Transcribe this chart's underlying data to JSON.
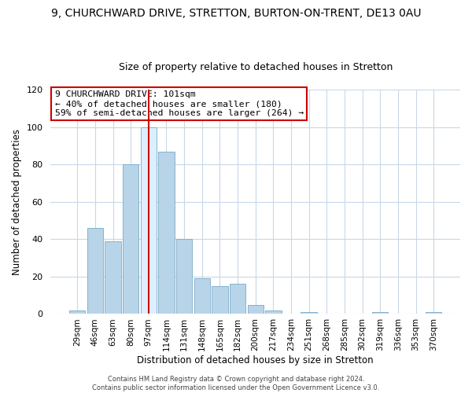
{
  "title": "9, CHURCHWARD DRIVE, STRETTON, BURTON-ON-TRENT, DE13 0AU",
  "subtitle": "Size of property relative to detached houses in Stretton",
  "xlabel": "Distribution of detached houses by size in Stretton",
  "ylabel": "Number of detached properties",
  "bar_labels": [
    "29sqm",
    "46sqm",
    "63sqm",
    "80sqm",
    "97sqm",
    "114sqm",
    "131sqm",
    "148sqm",
    "165sqm",
    "182sqm",
    "200sqm",
    "217sqm",
    "234sqm",
    "251sqm",
    "268sqm",
    "285sqm",
    "302sqm",
    "319sqm",
    "336sqm",
    "353sqm",
    "370sqm"
  ],
  "bar_values": [
    2,
    46,
    39,
    80,
    100,
    87,
    40,
    19,
    15,
    16,
    5,
    2,
    0,
    1,
    0,
    0,
    0,
    1,
    0,
    0,
    1
  ],
  "bar_color": "#b8d4e8",
  "bar_edge_color": "#7aaac8",
  "highlight_bar_index": 4,
  "highlight_bar_color": "#ddeeff",
  "highlight_line_color": "#cc0000",
  "ylim": [
    0,
    120
  ],
  "yticks": [
    0,
    20,
    40,
    60,
    80,
    100,
    120
  ],
  "annotation_title": "9 CHURCHWARD DRIVE: 101sqm",
  "annotation_line1": "← 40% of detached houses are smaller (180)",
  "annotation_line2": "59% of semi-detached houses are larger (264) →",
  "annotation_box_color": "#ffffff",
  "annotation_box_edge_color": "#cc0000",
  "footer_line1": "Contains HM Land Registry data © Crown copyright and database right 2024.",
  "footer_line2": "Contains public sector information licensed under the Open Government Licence v3.0.",
  "title_fontsize": 10,
  "subtitle_fontsize": 9,
  "grid_color": "#c8d8e8",
  "background_color": "#ffffff",
  "plot_bg_color": "#ffffff"
}
